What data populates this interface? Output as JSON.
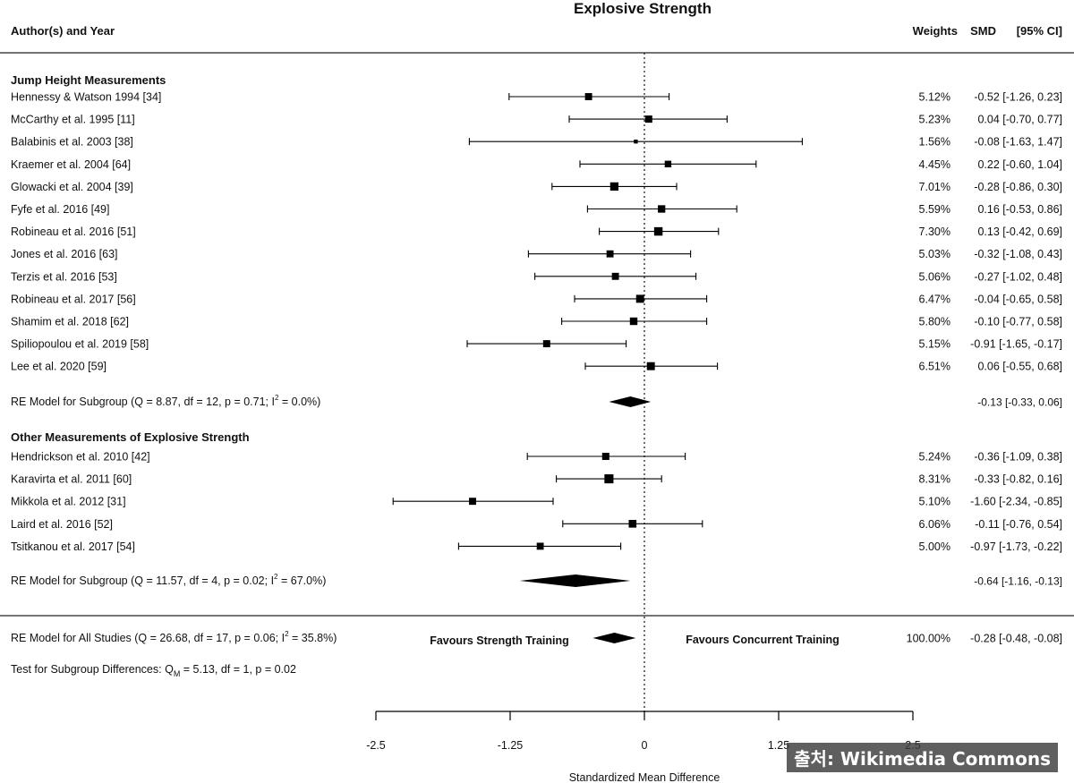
{
  "watermark": "출처: Wikimedia Commons",
  "chart_data": {
    "type": "forest",
    "title": "Explosive Strength",
    "columns": {
      "author": "Author(s) and Year",
      "weights": "Weights",
      "smd": "SMD",
      "ci": "[95% CI]"
    },
    "xlabel": "Standardized Mean Difference",
    "xlim": [
      -2.5,
      2.5
    ],
    "ticks": [
      -2.5,
      -1.25,
      0,
      1.25,
      2.5
    ],
    "tick_labels": [
      "-2.5",
      "-1.25",
      "0",
      "1.25",
      "2.5"
    ],
    "favours_left": "Favours Strength Training",
    "favours_right": "Favours Concurrent Training",
    "groups": [
      {
        "title": "Jump Height Measurements",
        "studies": [
          {
            "label": "Hennessy & Watson 1994 [34]",
            "smd": -0.52,
            "lo": -1.26,
            "hi": 0.23,
            "weight": 5.12,
            "weight_label": "5.12%",
            "ci_text": "-0.52 [-1.26,  0.23]"
          },
          {
            "label": "McCarthy et al. 1995 [11]",
            "smd": 0.04,
            "lo": -0.7,
            "hi": 0.77,
            "weight": 5.23,
            "weight_label": "5.23%",
            "ci_text": "0.04 [-0.70,  0.77]"
          },
          {
            "label": "Balabinis et al. 2003 [38]",
            "smd": -0.08,
            "lo": -1.63,
            "hi": 1.47,
            "weight": 1.56,
            "weight_label": "1.56%",
            "ci_text": "-0.08 [-1.63,  1.47]"
          },
          {
            "label": "Kraemer et al. 2004 [64]",
            "smd": 0.22,
            "lo": -0.6,
            "hi": 1.04,
            "weight": 4.45,
            "weight_label": "4.45%",
            "ci_text": "0.22 [-0.60,  1.04]"
          },
          {
            "label": "Glowacki et al. 2004 [39]",
            "smd": -0.28,
            "lo": -0.86,
            "hi": 0.3,
            "weight": 7.01,
            "weight_label": "7.01%",
            "ci_text": "-0.28 [-0.86,  0.30]"
          },
          {
            "label": "Fyfe et al. 2016 [49]",
            "smd": 0.16,
            "lo": -0.53,
            "hi": 0.86,
            "weight": 5.59,
            "weight_label": "5.59%",
            "ci_text": "0.16 [-0.53,  0.86]"
          },
          {
            "label": "Robineau et al. 2016 [51]",
            "smd": 0.13,
            "lo": -0.42,
            "hi": 0.69,
            "weight": 7.3,
            "weight_label": "7.30%",
            "ci_text": "0.13 [-0.42,  0.69]"
          },
          {
            "label": "Jones et al. 2016 [63]",
            "smd": -0.32,
            "lo": -1.08,
            "hi": 0.43,
            "weight": 5.03,
            "weight_label": "5.03%",
            "ci_text": "-0.32 [-1.08,  0.43]"
          },
          {
            "label": "Terzis et al. 2016 [53]",
            "smd": -0.27,
            "lo": -1.02,
            "hi": 0.48,
            "weight": 5.06,
            "weight_label": "5.06%",
            "ci_text": "-0.27 [-1.02,  0.48]"
          },
          {
            "label": "Robineau et al. 2017 [56]",
            "smd": -0.04,
            "lo": -0.65,
            "hi": 0.58,
            "weight": 6.47,
            "weight_label": "6.47%",
            "ci_text": "-0.04 [-0.65,  0.58]"
          },
          {
            "label": "Shamim et al. 2018 [62]",
            "smd": -0.1,
            "lo": -0.77,
            "hi": 0.58,
            "weight": 5.8,
            "weight_label": "5.80%",
            "ci_text": "-0.10 [-0.77,  0.58]"
          },
          {
            "label": "Spiliopoulou et al. 2019 [58]",
            "smd": -0.91,
            "lo": -1.65,
            "hi": -0.17,
            "weight": 5.15,
            "weight_label": "5.15%",
            "ci_text": "-0.91 [-1.65, -0.17]"
          },
          {
            "label": "Lee et al. 2020 [59]",
            "smd": 0.06,
            "lo": -0.55,
            "hi": 0.68,
            "weight": 6.51,
            "weight_label": "6.51%",
            "ci_text": "0.06 [-0.55,  0.68]"
          }
        ],
        "model": {
          "label_pre": "RE Model for Subgroup (Q = 8.87, df = 12, p = 0.71; I",
          "label_sup": "2",
          "label_post": " = 0.0%)",
          "est": -0.13,
          "lo": -0.33,
          "hi": 0.06,
          "ci_text": "-0.13 [-0.33, 0.06]"
        }
      },
      {
        "title": "Other Measurements of Explosive Strength",
        "studies": [
          {
            "label": "Hendrickson et al. 2010 [42]",
            "smd": -0.36,
            "lo": -1.09,
            "hi": 0.38,
            "weight": 5.24,
            "weight_label": "5.24%",
            "ci_text": "-0.36 [-1.09,  0.38]"
          },
          {
            "label": "Karavirta et al. 2011 [60]",
            "smd": -0.33,
            "lo": -0.82,
            "hi": 0.16,
            "weight": 8.31,
            "weight_label": "8.31%",
            "ci_text": "-0.33 [-0.82,  0.16]"
          },
          {
            "label": "Mikkola et al. 2012 [31]",
            "smd": -1.6,
            "lo": -2.34,
            "hi": -0.85,
            "weight": 5.1,
            "weight_label": "5.10%",
            "ci_text": "-1.60 [-2.34, -0.85]"
          },
          {
            "label": "Laird et al. 2016 [52]",
            "smd": -0.11,
            "lo": -0.76,
            "hi": 0.54,
            "weight": 6.06,
            "weight_label": "6.06%",
            "ci_text": "-0.11 [-0.76,  0.54]"
          },
          {
            "label": "Tsitkanou et al. 2017 [54]",
            "smd": -0.97,
            "lo": -1.73,
            "hi": -0.22,
            "weight": 5.0,
            "weight_label": "5.00%",
            "ci_text": "-0.97 [-1.73, -0.22]"
          }
        ],
        "model": {
          "label_pre": "RE Model for Subgroup (Q = 11.57, df = 4, p = 0.02; I",
          "label_sup": "2",
          "label_post": " = 67.0%)",
          "est": -0.64,
          "lo": -1.16,
          "hi": -0.13,
          "ci_text": "-0.64 [-1.16, -0.13]"
        }
      }
    ],
    "overall": {
      "label_pre": "RE Model for All Studies (Q = 26.68, df = 17, p = 0.06; I",
      "label_sup": "2",
      "label_post": " = 35.8%)",
      "est": -0.28,
      "lo": -0.48,
      "hi": -0.08,
      "weight_label": "100.00%",
      "ci_text": "-0.28 [-0.48, -0.08]"
    },
    "subgroup_test": {
      "pre": "Test for Subgroup Differences: Q",
      "sub": "M",
      "post": " = 5.13, df = 1, p = 0.02"
    }
  }
}
